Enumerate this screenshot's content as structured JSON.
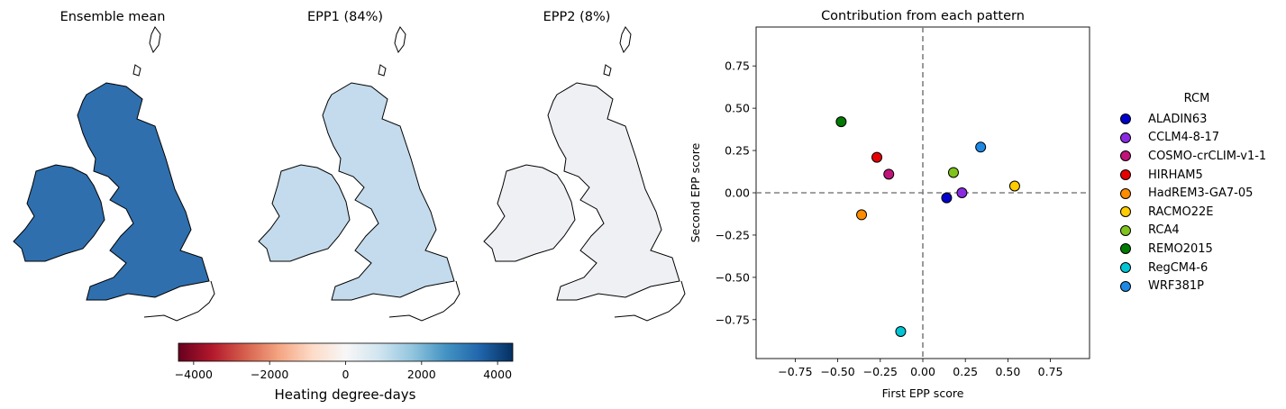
{
  "maps": [
    {
      "title": "Ensemble mean",
      "fill": "#2f6fae",
      "highlight": "#0d3f7a"
    },
    {
      "title": "EPP1 (84%)",
      "fill": "#c3dbec",
      "highlight": "#d8e7f3"
    },
    {
      "title": "EPP2 (8%)",
      "fill": "#eef0f4",
      "highlight": "#fbe3d6"
    }
  ],
  "colorbar": {
    "label": "Heating degree-days",
    "ticks": [
      "−4000",
      "−2000",
      "0",
      "2000",
      "4000"
    ],
    "tick_values": [
      -4000,
      -2000,
      0,
      2000,
      4000
    ],
    "range": [
      -4400,
      4400
    ],
    "colors": [
      "#67001f",
      "#b2182b",
      "#d6604d",
      "#f4a582",
      "#fddbc7",
      "#f7f7f7",
      "#d1e5f0",
      "#92c5de",
      "#4393c3",
      "#2166ac",
      "#053061"
    ]
  },
  "chart_data": {
    "type": "scatter",
    "title": "Contribution from each pattern",
    "xlabel": "First EPP score",
    "ylabel": "Second EPP score",
    "xlim": [
      -0.98,
      0.98
    ],
    "ylim": [
      -0.98,
      0.98
    ],
    "x_ticks": [
      "−0.75",
      "−0.50",
      "−0.25",
      "0.00",
      "0.25",
      "0.50",
      "0.75"
    ],
    "x_tick_values": [
      -0.75,
      -0.5,
      -0.25,
      0,
      0.25,
      0.5,
      0.75
    ],
    "y_ticks": [
      "−0.75",
      "−0.50",
      "−0.25",
      "0.00",
      "0.25",
      "0.50",
      "0.75"
    ],
    "y_tick_values": [
      -0.75,
      -0.5,
      -0.25,
      0,
      0.25,
      0.5,
      0.75
    ],
    "reference_lines": {
      "x": 0,
      "y": 0,
      "style": "dashed"
    },
    "grid": false,
    "legend_title": "RCM",
    "legend_position": "right",
    "series": [
      {
        "name": "ALADIN63",
        "x": 0.14,
        "y": -0.03,
        "color": "#0000cc"
      },
      {
        "name": "CCLM4-8-17",
        "x": 0.23,
        "y": 0.0,
        "color": "#8a2be2"
      },
      {
        "name": "COSMO-crCLIM-v1-1",
        "x": -0.2,
        "y": 0.11,
        "color": "#c0147a"
      },
      {
        "name": "HIRHAM5",
        "x": -0.27,
        "y": 0.21,
        "color": "#e60000"
      },
      {
        "name": "HadREM3-GA7-05",
        "x": -0.36,
        "y": -0.13,
        "color": "#ff8c00"
      },
      {
        "name": "RACMO22E",
        "x": 0.54,
        "y": 0.04,
        "color": "#ffcc00"
      },
      {
        "name": "RCA4",
        "x": 0.18,
        "y": 0.12,
        "color": "#7fc31c"
      },
      {
        "name": "REMO2015",
        "x": -0.48,
        "y": 0.42,
        "color": "#007a00"
      },
      {
        "name": "RegCM4-6",
        "x": -0.13,
        "y": -0.82,
        "color": "#00c5d5"
      },
      {
        "name": "WRF381P",
        "x": 0.34,
        "y": 0.27,
        "color": "#1e88e5"
      }
    ]
  }
}
